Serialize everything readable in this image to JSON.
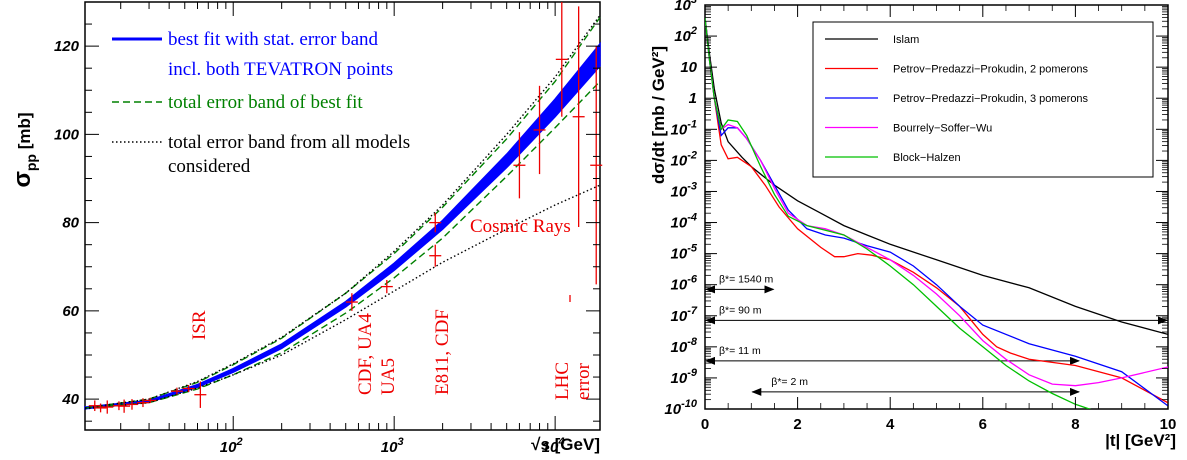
{
  "chart_data": [
    {
      "type": "line",
      "xlabel": "√s [GeV]",
      "ylabel": "σpp [mb]",
      "x_scale": "log",
      "xlim": [
        12,
        19000
      ],
      "ylim": [
        33,
        130
      ],
      "xticks": [
        {
          "v": 100,
          "label": "10",
          "exp": "2"
        },
        {
          "v": 1000,
          "label": "10",
          "exp": "3"
        },
        {
          "v": 10000,
          "label": "10",
          "exp": "4"
        }
      ],
      "yticks": [
        40,
        60,
        80,
        100,
        120
      ],
      "legend": [
        {
          "name": "best fit with stat. error band",
          "color": "#0000ff"
        },
        {
          "name": "incl. both TEVATRON points",
          "color": "#0000ff"
        },
        {
          "name": "total error band of best fit",
          "color": "#008000"
        },
        {
          "name": "total error band from all models",
          "color": "#000000"
        },
        {
          "name": "considered",
          "color": "#000000"
        }
      ],
      "series": [
        {
          "name": "best fit with stat. error band",
          "style": "band",
          "color": "#0000ff",
          "x": [
            12,
            30,
            60,
            100,
            200,
            500,
            1000,
            2000,
            5000,
            10000,
            19000
          ],
          "values": [
            38.0,
            39.5,
            43.0,
            46.5,
            52.0,
            61.5,
            70.0,
            79.5,
            94.0,
            106.0,
            118.0
          ],
          "halfwidth": [
            0.2,
            0.2,
            0.3,
            0.4,
            0.5,
            0.6,
            0.8,
            1.0,
            1.5,
            2.0,
            2.5
          ]
        },
        {
          "name": "total error band of best fit",
          "style": "dashed",
          "color": "#008000",
          "x": [
            12,
            30,
            60,
            100,
            200,
            500,
            1000,
            2000,
            5000,
            10000,
            19000
          ],
          "upper": [
            38.0,
            40.0,
            43.8,
            47.8,
            53.8,
            64.0,
            73.0,
            83.5,
            99.0,
            112.0,
            126.5
          ],
          "lower": [
            38.0,
            39.2,
            42.3,
            45.5,
            50.5,
            59.5,
            67.5,
            76.5,
            90.5,
            101.5,
            112.0
          ]
        },
        {
          "name": "total error band from all models",
          "style": "dotted",
          "color": "#000000",
          "x": [
            12,
            30,
            60,
            100,
            200,
            500,
            1000,
            2000,
            5000,
            10000,
            19000
          ],
          "upper": [
            38.0,
            40.0,
            44.0,
            48.0,
            54.0,
            64.0,
            73.5,
            84.0,
            100.0,
            113.0,
            127.0
          ],
          "lower": [
            37.8,
            39.2,
            42.5,
            45.5,
            50.0,
            58.0,
            64.5,
            71.0,
            78.5,
            84.0,
            88.5
          ]
        }
      ],
      "data_points": [
        {
          "x": 13.8,
          "y": 38.5,
          "err": 1.2
        },
        {
          "x": 15.0,
          "y": 38.0,
          "err": 1.0
        },
        {
          "x": 16.5,
          "y": 38.2,
          "err": 1.5
        },
        {
          "x": 19.5,
          "y": 38.5,
          "err": 1.0
        },
        {
          "x": 21.0,
          "y": 38.4,
          "err": 1.5
        },
        {
          "x": 23.5,
          "y": 38.8,
          "err": 1.2
        },
        {
          "x": 27.5,
          "y": 39.2,
          "err": 1.0
        },
        {
          "x": 30.5,
          "y": 39.7,
          "err": 0.6
        },
        {
          "x": 44.7,
          "y": 41.8,
          "err": 0.8
        },
        {
          "x": 52.8,
          "y": 42.4,
          "err": 0.8
        },
        {
          "x": 62.5,
          "y": 41.0,
          "err": 3.0
        },
        {
          "x": 546,
          "y": 62.0,
          "err": 2.0
        },
        {
          "x": 900,
          "y": 65.5,
          "err": 1.5
        },
        {
          "x": 1800,
          "y": 72.5,
          "err": 2.5
        },
        {
          "x": 1800,
          "y": 80.0,
          "err": 2.2
        },
        {
          "x": 6000,
          "y": 93.0,
          "err": 7.5
        },
        {
          "x": 8000,
          "y": 101.0,
          "err": 10.0
        },
        {
          "x": 11000,
          "y": 117.0,
          "err": 13.0
        },
        {
          "x": 14000,
          "y": 104.0,
          "err": 25.0
        },
        {
          "x": 18000,
          "y": 93.0,
          "err": 27.0
        }
      ],
      "annotations": [
        "ISR",
        "CDF, UA4",
        "UA5",
        "E811, CDF",
        "Cosmic Rays",
        "LHC",
        "error"
      ],
      "grid": false
    },
    {
      "type": "line",
      "xlabel": "|t|   [GeV²]",
      "ylabel": "dσ/dt   [mb / GeV²]",
      "y_scale": "log",
      "xlim": [
        0,
        10
      ],
      "ylim_exp": [
        -10,
        3
      ],
      "xticks": [
        0,
        2,
        4,
        6,
        8,
        10
      ],
      "yticks": [
        {
          "e": 3,
          "label": "10",
          "exp": "3"
        },
        {
          "e": 2,
          "label": "10",
          "exp": "2"
        },
        {
          "e": 1,
          "label": "10",
          "exp": ""
        },
        {
          "e": 0,
          "label": "1",
          "exp": ""
        },
        {
          "e": -1,
          "label": "10",
          "exp": "-1"
        },
        {
          "e": -2,
          "label": "10",
          "exp": "-2"
        },
        {
          "e": -3,
          "label": "10",
          "exp": "-3"
        },
        {
          "e": -4,
          "label": "10",
          "exp": "-4"
        },
        {
          "e": -5,
          "label": "10",
          "exp": "-5"
        },
        {
          "e": -6,
          "label": "10",
          "exp": "-6"
        },
        {
          "e": -7,
          "label": "10",
          "exp": "-7"
        },
        {
          "e": -8,
          "label": "10",
          "exp": "-8"
        },
        {
          "e": -9,
          "label": "10",
          "exp": "-9"
        },
        {
          "e": -10,
          "label": "10",
          "exp": "-10"
        }
      ],
      "legend": [
        {
          "name": "Islam",
          "color": "#000000"
        },
        {
          "name": "Petrov−Predazzi−Prokudin, 2 pomerons",
          "color": "#ff0000"
        },
        {
          "name": "Petrov−Predazzi−Prokudin, 3 pomerons",
          "color": "#0000ff"
        },
        {
          "name": "Bourrely−Soffer−Wu",
          "color": "#ff00ff"
        },
        {
          "name": "Block−Halzen",
          "color": "#00c000"
        }
      ],
      "series": [
        {
          "name": "Islam",
          "color": "#000000",
          "x": [
            0,
            0.1,
            0.2,
            0.35,
            0.5,
            0.8,
            1.0,
            1.5,
            2,
            2.5,
            3,
            3.5,
            4,
            5,
            6,
            7,
            8,
            9,
            10
          ],
          "log10": [
            2.6,
            1.4,
            0.3,
            -0.8,
            -1.4,
            -1.9,
            -2.2,
            -2.8,
            -3.3,
            -3.7,
            -4.1,
            -4.4,
            -4.7,
            -5.2,
            -5.7,
            -6.1,
            -6.7,
            -7.2,
            -7.6
          ]
        },
        {
          "name": "Petrov−Predazzi−Prokudin, 2 pomerons",
          "color": "#ff0000",
          "x": [
            0,
            0.1,
            0.2,
            0.35,
            0.5,
            0.7,
            1.0,
            1.3,
            1.6,
            2.0,
            2.5,
            2.8,
            3.0,
            3.3,
            3.6,
            4.0,
            4.5,
            5.0,
            5.5,
            6.0,
            6.3,
            6.6,
            7.0,
            8.0,
            9.0,
            10.0
          ],
          "log10": [
            2.6,
            1.2,
            0.0,
            -1.5,
            -1.95,
            -1.9,
            -2.2,
            -2.8,
            -3.5,
            -4.2,
            -4.8,
            -5.1,
            -5.1,
            -5.0,
            -5.05,
            -5.2,
            -5.6,
            -6.1,
            -6.7,
            -7.6,
            -8.0,
            -8.2,
            -8.4,
            -8.6,
            -9.0,
            -9.8
          ]
        },
        {
          "name": "Petrov−Predazzi−Prokudin, 3 pomerons",
          "color": "#0000ff",
          "x": [
            0,
            0.1,
            0.2,
            0.35,
            0.5,
            0.7,
            0.9,
            1.2,
            1.5,
            1.8,
            2.2,
            2.6,
            3.0,
            3.5,
            4.0,
            4.5,
            5.0,
            5.5,
            6.0,
            7.0,
            8.0,
            9.0,
            10.0
          ],
          "log10": [
            2.6,
            1.2,
            0.0,
            -1.2,
            -0.95,
            -0.95,
            -1.3,
            -2.0,
            -2.8,
            -3.6,
            -4.2,
            -4.4,
            -4.5,
            -4.75,
            -4.95,
            -5.4,
            -6.0,
            -6.7,
            -7.3,
            -7.9,
            -8.3,
            -8.8,
            -9.9
          ]
        },
        {
          "name": "Bourrely−Soffer−Wu",
          "color": "#ff00ff",
          "x": [
            0,
            0.1,
            0.2,
            0.35,
            0.5,
            0.7,
            0.9,
            1.2,
            1.5,
            1.8,
            2.2,
            2.6,
            3.0,
            3.5,
            4.0,
            4.5,
            5.0,
            5.5,
            6.0,
            6.5,
            7.0,
            7.5,
            8.0,
            8.5,
            9.0,
            10.0
          ],
          "log10": [
            2.6,
            1.2,
            0.0,
            -1.0,
            -0.85,
            -0.95,
            -1.3,
            -2.0,
            -2.9,
            -3.7,
            -4.1,
            -4.2,
            -4.4,
            -4.8,
            -5.2,
            -5.7,
            -6.3,
            -7.0,
            -7.8,
            -8.4,
            -8.9,
            -9.2,
            -9.25,
            -9.15,
            -9.0,
            -8.65
          ]
        },
        {
          "name": "Block−Halzen",
          "color": "#00c000",
          "x": [
            0,
            0.1,
            0.2,
            0.35,
            0.5,
            0.7,
            0.9,
            1.2,
            1.5,
            1.8,
            2.2,
            2.6,
            3.0,
            3.5,
            4.0,
            4.5,
            5.0,
            5.5,
            6.0,
            6.5,
            7.0,
            7.5,
            8.0,
            8.5
          ],
          "log10": [
            2.6,
            1.2,
            0.0,
            -1.0,
            -0.7,
            -0.75,
            -1.2,
            -2.2,
            -3.1,
            -3.8,
            -4.1,
            -4.25,
            -4.4,
            -4.85,
            -5.4,
            -6.0,
            -6.7,
            -7.4,
            -8.0,
            -8.6,
            -9.1,
            -9.5,
            -9.85,
            -10.1
          ]
        }
      ],
      "arrows": [
        {
          "label": "β*= 1540 m",
          "x_start": 0,
          "x_end": 1.5,
          "log10": -6.15
        },
        {
          "label": "β*= 90 m",
          "x_start": 0,
          "x_end": 10,
          "log10": -7.15
        },
        {
          "label": "β*= 11 m",
          "x_start": 0,
          "x_end": 8.1,
          "log10": -8.45
        },
        {
          "label": "β*= 2 m",
          "x_start": 1.0,
          "x_end": 8.1,
          "log10": -9.45
        }
      ],
      "grid": false
    }
  ]
}
